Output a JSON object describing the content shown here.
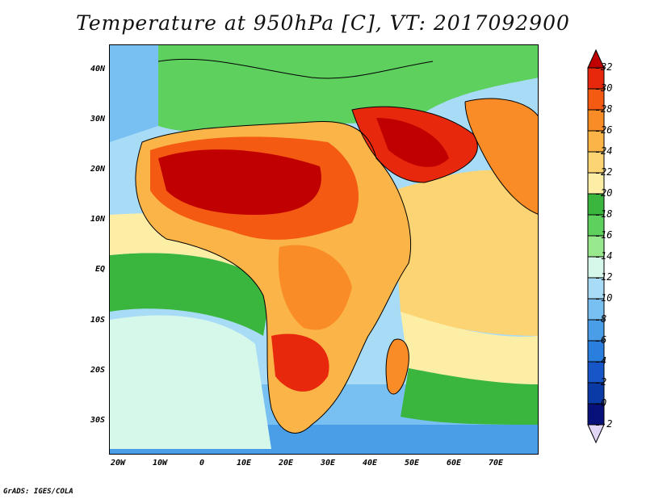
{
  "title": "Temperature at 950hPa [C], VT: 2017092900",
  "credit": "GrADS: IGES/COLA",
  "latitude_labels": [
    "40N",
    "30N",
    "20N",
    "10N",
    "EQ",
    "10S",
    "20S",
    "30S"
  ],
  "longitude_labels": [
    "20W",
    "10W",
    "0",
    "10E",
    "20E",
    "30E",
    "40E",
    "50E",
    "60E",
    "70E"
  ],
  "colorbar": {
    "labels": [
      "32",
      "30",
      "28",
      "26",
      "24",
      "22",
      "20",
      "18",
      "16",
      "14",
      "12",
      "10",
      "8",
      "6",
      "4",
      "2",
      "0",
      "-2"
    ],
    "colors": [
      "#c00000",
      "#e8280c",
      "#f45a12",
      "#f98c26",
      "#fbb448",
      "#fcd474",
      "#fdeea6",
      "#3ab63e",
      "#5ed05e",
      "#98e88e",
      "#d6f8ea",
      "#a8dcf6",
      "#78c0f2",
      "#4a9ee8",
      "#2a7ede",
      "#1656c6",
      "#0a3aa6",
      "#08107a",
      "#e2d6f6"
    ]
  },
  "map_data": {
    "variable": "Temperature at 950hPa",
    "units": "C",
    "valid_time": "2017092900",
    "lon_range": [
      -22,
      80
    ],
    "lat_range": [
      -38,
      45
    ]
  }
}
